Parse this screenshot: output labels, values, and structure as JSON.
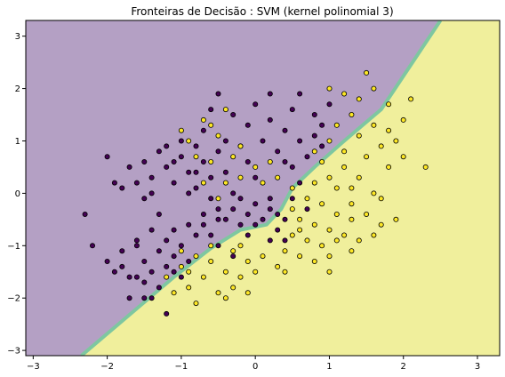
{
  "chart_data": {
    "type": "scatter",
    "title": "Fronteiras de Decisão : SVM (kernel polinomial 3)",
    "xlabel": "",
    "ylabel": "",
    "xlim": [
      -3.1,
      3.3
    ],
    "ylim": [
      -3.1,
      3.3
    ],
    "xticks": [
      -3,
      -2,
      -1,
      0,
      1,
      2,
      3
    ],
    "yticks": [
      -3,
      -2,
      -1,
      0,
      1,
      2,
      3
    ],
    "grid": false,
    "region_colors": {
      "class_0": "#b4a0c4",
      "class_1": "#f0ef9c",
      "boundary": "#7ec7a0"
    },
    "point_colors": {
      "class_0": "#440154",
      "class_1": "#fde725",
      "edge": "#000000"
    },
    "decision_boundary": [
      [
        -2.35,
        -3.1
      ],
      [
        -1.6,
        -2.2
      ],
      [
        -1.1,
        -1.6
      ],
      [
        -0.6,
        -1.05
      ],
      [
        -0.2,
        -0.7
      ],
      [
        0.15,
        -0.6
      ],
      [
        0.35,
        -0.3
      ],
      [
        0.5,
        0.1
      ],
      [
        0.8,
        0.5
      ],
      [
        1.2,
        1.0
      ],
      [
        1.7,
        1.6
      ],
      [
        2.5,
        3.3
      ]
    ],
    "series": [
      {
        "values": [
          [
            -2.0,
            -1.3
          ],
          [
            -1.8,
            -1.1
          ],
          [
            -1.7,
            -1.6
          ],
          [
            -1.6,
            -0.9
          ],
          [
            -1.5,
            -1.3
          ],
          [
            -1.5,
            -2.0
          ],
          [
            -1.4,
            -1.5
          ],
          [
            -1.3,
            -1.1
          ],
          [
            -1.3,
            -1.8
          ],
          [
            -1.2,
            -0.9
          ],
          [
            -1.2,
            -1.4
          ],
          [
            -1.1,
            -1.2
          ],
          [
            -1.0,
            -1.6
          ],
          [
            -1.0,
            -1.0
          ],
          [
            -0.9,
            -1.3
          ],
          [
            -0.8,
            -0.8
          ],
          [
            -0.7,
            -0.6
          ],
          [
            -0.6,
            -0.8
          ],
          [
            -0.5,
            -0.5
          ],
          [
            -1.6,
            -1.0
          ],
          [
            -2.2,
            -1.0
          ],
          [
            -1.9,
            -1.5
          ],
          [
            -1.4,
            -0.7
          ],
          [
            -1.1,
            -1.5
          ],
          [
            -0.9,
            -0.6
          ],
          [
            -1.7,
            -2.0
          ],
          [
            -1.4,
            -2.0
          ],
          [
            -1.2,
            -2.3
          ],
          [
            -1.5,
            -1.7
          ],
          [
            -1.8,
            -1.4
          ],
          [
            -1.3,
            -0.4
          ],
          [
            -1.1,
            -0.7
          ],
          [
            -1.5,
            0.6
          ],
          [
            -1.4,
            0.3
          ],
          [
            -1.3,
            0.8
          ],
          [
            -1.2,
            0.5
          ],
          [
            -1.1,
            0.2
          ],
          [
            -1.0,
            0.7
          ],
          [
            -0.9,
            0.4
          ],
          [
            -0.8,
            0.9
          ],
          [
            -0.8,
            0.1
          ],
          [
            -0.7,
            0.6
          ],
          [
            -0.6,
            0.3
          ],
          [
            -0.6,
            -0.1
          ],
          [
            -0.5,
            0.8
          ],
          [
            -0.4,
            0.4
          ],
          [
            -0.3,
            0.0
          ],
          [
            -1.6,
            0.2
          ],
          [
            -1.7,
            0.5
          ],
          [
            -1.4,
            0.0
          ],
          [
            -1.2,
            0.9
          ],
          [
            -1.0,
            1.0
          ],
          [
            -0.9,
            0.0
          ],
          [
            -0.7,
            1.2
          ],
          [
            -1.5,
            -0.1
          ],
          [
            -1.8,
            0.1
          ],
          [
            -1.1,
            0.6
          ],
          [
            -0.8,
            0.4
          ],
          [
            -2.3,
            -0.4
          ],
          [
            -1.9,
            0.2
          ],
          [
            -0.5,
            -0.3
          ],
          [
            -0.4,
            -0.5
          ],
          [
            -0.3,
            -0.3
          ],
          [
            -0.2,
            -0.6
          ],
          [
            -0.1,
            -0.4
          ],
          [
            0.0,
            -0.2
          ],
          [
            0.1,
            -0.5
          ],
          [
            0.2,
            -0.3
          ],
          [
            0.3,
            -0.7
          ],
          [
            -0.2,
            -0.1
          ],
          [
            0.0,
            -0.6
          ],
          [
            -0.1,
            -0.8
          ],
          [
            0.2,
            -0.9
          ],
          [
            -0.5,
            -1.0
          ],
          [
            -0.3,
            -1.2
          ],
          [
            0.4,
            -0.5
          ],
          [
            0.5,
            -0.1
          ],
          [
            0.3,
            -0.4
          ],
          [
            0.6,
            0.2
          ],
          [
            0.5,
            0.5
          ],
          [
            0.7,
            0.7
          ],
          [
            0.8,
            1.1
          ],
          [
            0.4,
            1.2
          ],
          [
            0.3,
            0.8
          ],
          [
            0.2,
            1.4
          ],
          [
            0.1,
            1.0
          ],
          [
            0.0,
            1.7
          ],
          [
            -0.1,
            1.3
          ],
          [
            -0.2,
            0.9
          ],
          [
            -0.3,
            1.5
          ],
          [
            -0.5,
            1.9
          ],
          [
            0.5,
            1.6
          ],
          [
            0.8,
            1.5
          ],
          [
            1.0,
            1.7
          ],
          [
            0.9,
            1.3
          ],
          [
            0.6,
            1.0
          ],
          [
            0.4,
            0.6
          ],
          [
            -0.1,
            0.6
          ],
          [
            0.2,
            1.9
          ],
          [
            -0.4,
            1.0
          ],
          [
            0.4,
            -0.9
          ],
          [
            0.2,
            -0.1
          ],
          [
            0.0,
            0.3
          ],
          [
            -0.7,
            -0.4
          ],
          [
            -2.0,
            0.7
          ],
          [
            0.7,
            -0.3
          ],
          [
            0.9,
            0.9
          ],
          [
            -0.6,
            1.6
          ],
          [
            0.6,
            1.9
          ],
          [
            -1.6,
            -1.6
          ]
        ]
      },
      {
        "values": [
          [
            -1.2,
            -1.6
          ],
          [
            -1.0,
            -1.4
          ],
          [
            -0.9,
            -1.8
          ],
          [
            -0.8,
            -1.2
          ],
          [
            -0.7,
            -1.6
          ],
          [
            -0.6,
            -1.3
          ],
          [
            -0.5,
            -1.9
          ],
          [
            -0.4,
            -1.5
          ],
          [
            -0.3,
            -1.1
          ],
          [
            -0.2,
            -1.6
          ],
          [
            -0.1,
            -1.3
          ],
          [
            0.0,
            -1.5
          ],
          [
            -0.6,
            -1.0
          ],
          [
            -0.8,
            -2.1
          ],
          [
            -0.4,
            -2.0
          ],
          [
            -1.0,
            -1.1
          ],
          [
            -0.3,
            -1.8
          ],
          [
            0.1,
            -1.2
          ],
          [
            -1.1,
            -1.9
          ],
          [
            -0.2,
            -1.0
          ],
          [
            0.4,
            -1.1
          ],
          [
            0.5,
            -0.8
          ],
          [
            0.6,
            -0.5
          ],
          [
            0.7,
            -0.9
          ],
          [
            0.8,
            -0.6
          ],
          [
            0.9,
            -1.0
          ],
          [
            1.0,
            -0.7
          ],
          [
            1.1,
            -0.4
          ],
          [
            1.2,
            -0.8
          ],
          [
            1.3,
            -0.5
          ],
          [
            1.4,
            -0.9
          ],
          [
            0.6,
            -1.2
          ],
          [
            0.8,
            -1.3
          ],
          [
            1.0,
            -1.2
          ],
          [
            0.5,
            -0.3
          ],
          [
            0.7,
            -0.1
          ],
          [
            0.9,
            -0.2
          ],
          [
            1.1,
            0.1
          ],
          [
            1.3,
            -0.2
          ],
          [
            1.5,
            -0.4
          ],
          [
            1.7,
            -0.6
          ],
          [
            1.9,
            -0.5
          ],
          [
            0.8,
            0.2
          ],
          [
            1.0,
            0.3
          ],
          [
            1.2,
            0.5
          ],
          [
            1.4,
            0.3
          ],
          [
            1.6,
            0.0
          ],
          [
            1.0,
            -1.5
          ],
          [
            1.3,
            -1.1
          ],
          [
            0.4,
            -1.5
          ],
          [
            0.8,
            0.8
          ],
          [
            1.0,
            1.0
          ],
          [
            1.1,
            1.3
          ],
          [
            1.2,
            0.8
          ],
          [
            1.3,
            1.5
          ],
          [
            1.4,
            1.1
          ],
          [
            1.5,
            0.7
          ],
          [
            1.6,
            1.3
          ],
          [
            1.7,
            0.9
          ],
          [
            1.8,
            1.2
          ],
          [
            1.9,
            1.0
          ],
          [
            2.0,
            1.4
          ],
          [
            1.4,
            1.8
          ],
          [
            1.6,
            2.0
          ],
          [
            1.2,
            1.9
          ],
          [
            1.0,
            2.0
          ],
          [
            1.5,
            2.3
          ],
          [
            2.1,
            1.8
          ],
          [
            1.8,
            1.7
          ],
          [
            2.3,
            0.5
          ],
          [
            -0.5,
            1.1
          ],
          [
            -0.3,
            0.7
          ],
          [
            -0.6,
            0.6
          ],
          [
            -0.4,
            0.2
          ],
          [
            -0.2,
            0.3
          ],
          [
            -0.7,
            0.2
          ],
          [
            -0.8,
            0.7
          ],
          [
            -0.5,
            -0.1
          ],
          [
            0.0,
            0.5
          ],
          [
            0.1,
            0.2
          ],
          [
            -0.9,
            1.0
          ],
          [
            -1.0,
            1.2
          ],
          [
            -0.6,
            1.3
          ],
          [
            -0.2,
            0.9
          ],
          [
            -0.4,
            1.6
          ],
          [
            0.3,
            0.3
          ],
          [
            0.2,
            0.6
          ],
          [
            -0.7,
            1.4
          ],
          [
            0.5,
            0.1
          ],
          [
            1.7,
            -0.1
          ],
          [
            1.3,
            0.1
          ],
          [
            0.9,
            0.6
          ],
          [
            2.0,
            0.7
          ],
          [
            1.1,
            -0.9
          ],
          [
            1.6,
            -0.8
          ],
          [
            0.6,
            -0.7
          ],
          [
            -0.1,
            -1.9
          ],
          [
            -0.9,
            -1.5
          ],
          [
            1.8,
            0.5
          ],
          [
            0.3,
            -1.4
          ]
        ]
      }
    ]
  }
}
